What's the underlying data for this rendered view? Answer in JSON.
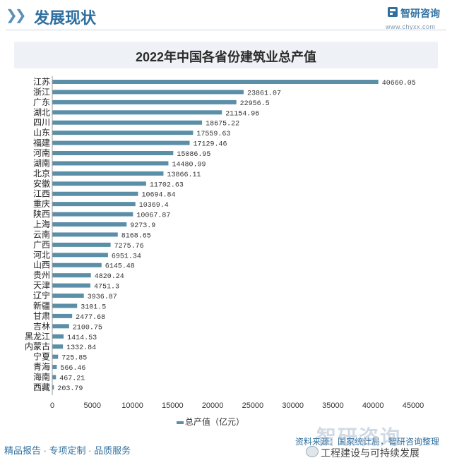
{
  "header": {
    "section_title": "发展现状",
    "brand": "智研咨询",
    "url": "www.chyxx.com"
  },
  "footer": {
    "slogan": "精品报告 · 专项定制 · 品质服务",
    "source": "资料来源：国家统计局，智研咨询整理",
    "watermark": "智研咨询",
    "account": "工程建设与可持续发展"
  },
  "chart_data": {
    "type": "bar",
    "orientation": "horizontal",
    "title": "2022年中国各省份建筑业总产值",
    "categories": [
      "江苏",
      "浙江",
      "广东",
      "湖北",
      "四川",
      "山东",
      "福建",
      "河南",
      "湖南",
      "北京",
      "安徽",
      "江西",
      "重庆",
      "陕西",
      "上海",
      "云南",
      "广西",
      "河北",
      "山西",
      "贵州",
      "天津",
      "辽宁",
      "新疆",
      "甘肃",
      "吉林",
      "黑龙江",
      "内蒙古",
      "宁夏",
      "青海",
      "海南",
      "西藏"
    ],
    "series": [
      {
        "name": "总产值（亿元）",
        "values": [
          40660.05,
          23861.07,
          22956.5,
          21154.96,
          18675.22,
          17559.63,
          17129.46,
          15086.95,
          14480.99,
          13866.11,
          11702.63,
          10694.84,
          10369.4,
          10067.87,
          9273.9,
          8168.65,
          7275.76,
          6951.34,
          6145.48,
          4820.24,
          4751.3,
          3936.87,
          3101.5,
          2477.68,
          2100.75,
          1414.53,
          1332.84,
          725.85,
          566.46,
          467.21,
          203.79
        ],
        "labels": [
          "40660.05",
          "23861.07",
          "22956.5",
          "21154.96",
          "18675.22",
          "17559.63",
          "17129.46",
          "15086.95",
          "14480.99",
          "13866.11",
          "11702.63",
          "10694.84",
          "10369.4",
          "10067.87",
          "9273.9",
          "8168.65",
          "7275.76",
          "6951.34",
          "6145.48",
          "4820.24",
          "4751.3",
          "3936.87",
          "3101.5",
          "2477.68",
          "2100.75",
          "1414.53",
          "1332.84",
          "725.85",
          "566.46",
          "467.21",
          "203.79"
        ]
      }
    ],
    "xlim": [
      0,
      45000
    ],
    "xticks": [
      0,
      5000,
      10000,
      15000,
      20000,
      25000,
      30000,
      35000,
      40000,
      45000
    ],
    "xtick_labels": [
      "0",
      "5000",
      "10000",
      "15000",
      "20000",
      "25000",
      "30000",
      "35000",
      "40000",
      "45000"
    ],
    "legend": "bottom",
    "grid": false,
    "bar_color": "#5b8fa8"
  }
}
